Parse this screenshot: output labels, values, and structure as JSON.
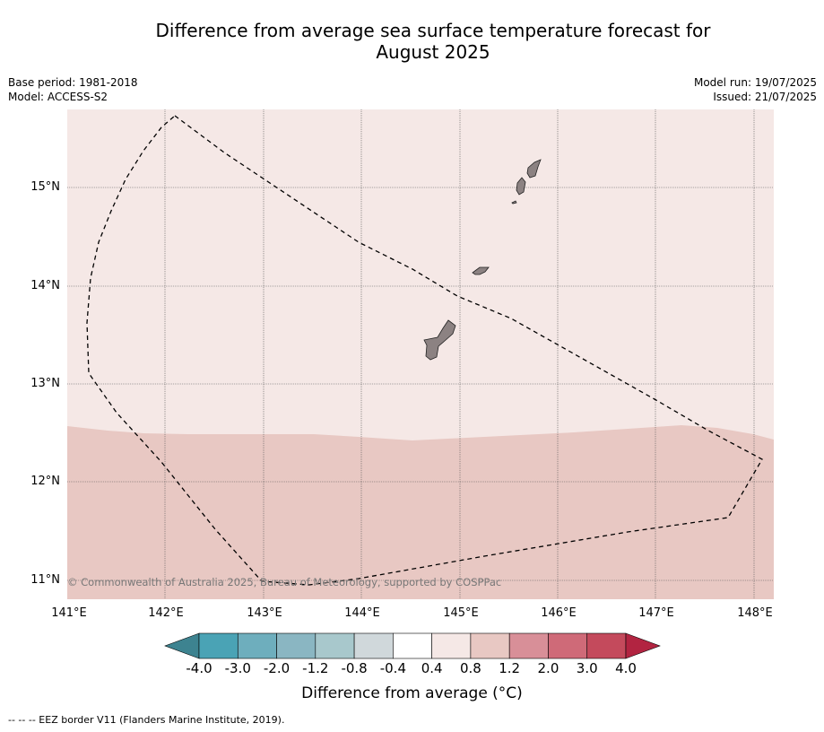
{
  "title_line1": "Difference from average sea surface temperature forecast for",
  "title_line2": "August 2025",
  "base_period": "Base period: 1981-2018",
  "model": "Model: ACCESS-S2",
  "model_run": "Model run: 19/07/2025",
  "issued": "Issued: 21/07/2025",
  "copyright": "© Commonwealth of Australia 2025, Bureau of Meteorology, supported by COSPPac",
  "footnote": "--  --  -- EEZ border V11 (Flanders Marine Institute, 2019).",
  "map": {
    "lon_labels": [
      "141°E",
      "142°E",
      "143°E",
      "144°E",
      "145°E",
      "146°E",
      "147°E",
      "148°E"
    ],
    "lat_labels": [
      "15°N",
      "14°N",
      "13°N",
      "12°N",
      "11°N"
    ],
    "colors": {
      "north_fill": "#f5e8e6",
      "south_fill": "#e8c8c3",
      "land": "#8c8282"
    }
  },
  "colorbar": {
    "label": "Difference from average (°C)",
    "ticks": [
      "-4.0",
      "-3.0",
      "-2.0",
      "-1.2",
      "-0.8",
      "-0.4",
      "0.4",
      "0.8",
      "1.2",
      "2.0",
      "3.0",
      "4.0"
    ],
    "colors": [
      "#3d8390",
      "#4aa3b5",
      "#6eaebd",
      "#8ab6c2",
      "#a8c8cc",
      "#d0d8db",
      "#ffffff",
      "#f5e8e6",
      "#e8c8c3",
      "#d88f98",
      "#cf6a78",
      "#c44a5c",
      "#b22441"
    ]
  }
}
